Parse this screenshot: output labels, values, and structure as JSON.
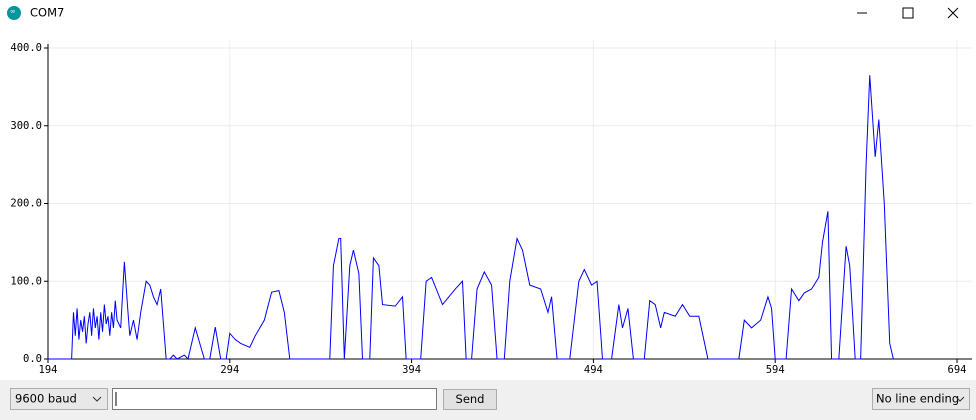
{
  "window": {
    "title": "COM7"
  },
  "chart_data": {
    "type": "line",
    "color": "#0000ff",
    "grid": true,
    "xlim": [
      194,
      694
    ],
    "ylim": [
      0,
      400
    ],
    "xticks": [
      194,
      294,
      394,
      494,
      594,
      694
    ],
    "yticks": [
      {
        "value": 0,
        "label": "0.0"
      },
      {
        "value": 100,
        "label": "100.0"
      },
      {
        "value": 200,
        "label": "200.0"
      },
      {
        "value": 300,
        "label": "300.0"
      },
      {
        "value": 400,
        "label": "400.0"
      }
    ],
    "x": [
      194,
      207,
      208,
      209,
      210,
      211,
      212,
      213,
      214,
      215,
      216,
      217,
      218,
      219,
      220,
      221,
      222,
      223,
      224,
      225,
      226,
      227,
      228,
      229,
      230,
      231,
      232,
      234,
      236,
      238,
      239,
      241,
      243,
      245,
      248,
      250,
      252,
      254,
      256,
      258,
      259,
      261,
      263,
      265,
      269,
      271,
      275,
      280,
      283,
      286,
      289,
      292,
      294,
      297,
      300,
      305,
      308,
      313,
      317,
      321,
      324,
      327,
      349,
      351,
      354,
      355,
      357,
      360,
      362,
      365,
      367,
      371,
      373,
      376,
      378,
      385,
      389,
      391,
      399,
      402,
      405,
      411,
      418,
      422,
      424,
      427,
      430,
      434,
      438,
      441,
      445,
      448,
      452,
      455,
      459,
      465,
      469,
      471,
      474,
      481,
      486,
      489,
      493,
      496,
      499,
      504,
      508,
      510,
      513,
      516,
      522,
      525,
      528,
      531,
      533,
      539,
      543,
      547,
      552,
      557,
      574,
      577,
      581,
      586,
      590,
      592,
      594,
      600,
      603,
      607,
      610,
      614,
      618,
      620,
      623,
      625,
      629,
      633,
      635,
      638,
      641,
      644,
      646,
      649,
      651,
      654,
      657,
      659
    ],
    "values": [
      0,
      0,
      60,
      30,
      65,
      25,
      50,
      35,
      55,
      20,
      45,
      60,
      30,
      65,
      40,
      55,
      25,
      60,
      35,
      70,
      45,
      55,
      30,
      60,
      40,
      75,
      50,
      40,
      125,
      60,
      30,
      50,
      25,
      60,
      100,
      95,
      80,
      70,
      90,
      30,
      0,
      0,
      5,
      0,
      5,
      0,
      40,
      0,
      0,
      41,
      0,
      0,
      33,
      25,
      20,
      15,
      30,
      50,
      86,
      88,
      60,
      0,
      0,
      120,
      155,
      155,
      0,
      120,
      140,
      110,
      0,
      0,
      130,
      120,
      70,
      68,
      80,
      0,
      0,
      100,
      105,
      70,
      90,
      100,
      0,
      0,
      90,
      112,
      95,
      0,
      0,
      100,
      155,
      140,
      95,
      90,
      60,
      80,
      0,
      0,
      100,
      115,
      95,
      100,
      0,
      0,
      70,
      40,
      65,
      0,
      0,
      75,
      70,
      40,
      60,
      55,
      70,
      55,
      55,
      0,
      0,
      50,
      40,
      50,
      80,
      65,
      0,
      0,
      90,
      75,
      85,
      90,
      105,
      150,
      190,
      0,
      0,
      145,
      120,
      0,
      0,
      250,
      365,
      260,
      308,
      200,
      20,
      0
    ]
  },
  "controls": {
    "baud": "9600 baud",
    "send": "Send",
    "line_ending": "No line ending"
  }
}
